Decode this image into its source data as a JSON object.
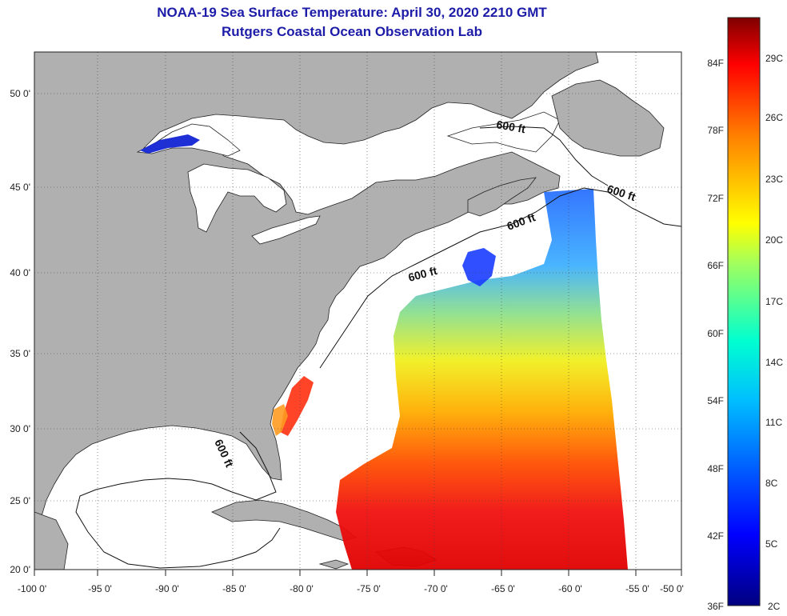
{
  "title": {
    "line1": "NOAA-19 Sea Surface Temperature:  April 30, 2020 2210 GMT",
    "line2": "Rutgers Coastal Ocean Observation Lab"
  },
  "map": {
    "lon_labels": [
      "-100 0'",
      "-95 0'",
      "-90 0'",
      "-85 0'",
      "-80 0'",
      "-75 0'",
      "-70 0'",
      "-65 0'",
      "-60 0'",
      "-55 0'",
      "-50 0'"
    ],
    "lat_labels": [
      "50 0'",
      "45 0'",
      "40 0'",
      "35 0'",
      "30 0'",
      "25 0'",
      "20 0'"
    ],
    "contour_label": "600 ft",
    "land_color": "#b0b0b0",
    "ocean_color": "#ffffff"
  },
  "colorbar": {
    "fahrenheit_labels": [
      "84F",
      "78F",
      "72F",
      "66F",
      "60F",
      "54F",
      "48F",
      "42F",
      "36F"
    ],
    "celsius_labels": [
      "29C",
      "26C",
      "23C",
      "20C",
      "17C",
      "14C",
      "11C",
      "8C",
      "5C",
      "2C"
    ],
    "colors": [
      "#00007f",
      "#0000ff",
      "#007fff",
      "#00ffff",
      "#7fff7f",
      "#ffff00",
      "#ff7f00",
      "#ff0000",
      "#7f0000"
    ]
  }
}
